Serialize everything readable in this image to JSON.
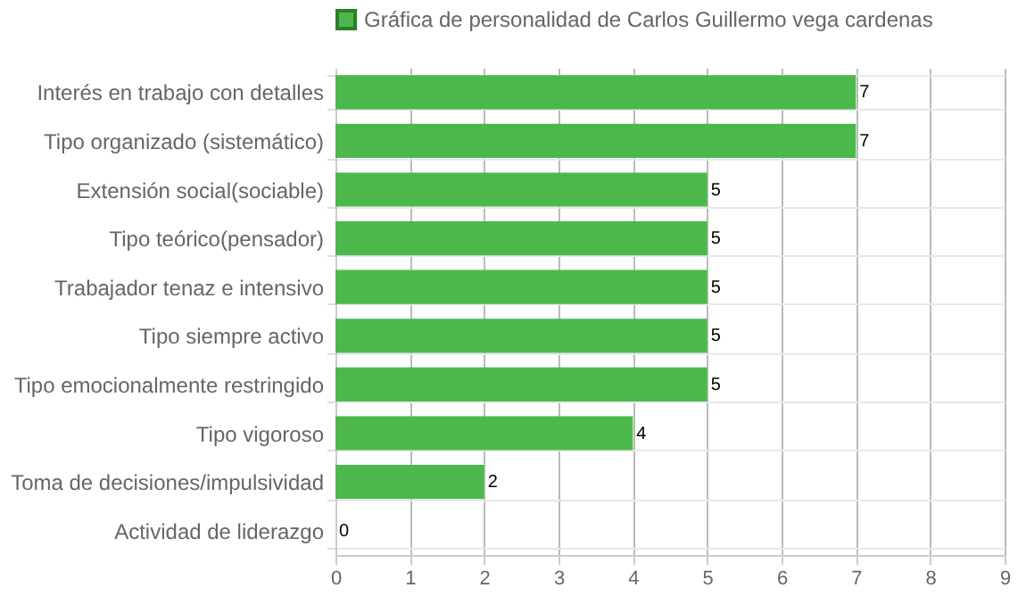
{
  "chart_data": {
    "type": "bar",
    "orientation": "horizontal",
    "categories": [
      "Interés en trabajo con detalles",
      "Tipo organizado (sistemático)",
      "Extensión social(sociable)",
      "Tipo teórico(pensador)",
      "Trabajador tenaz e intensivo",
      "Tipo siempre activo",
      "Tipo emocionalmente restringido",
      "Tipo vigoroso",
      "Toma de decisiones/impulsividad",
      "Actividad de liderazgo"
    ],
    "series": [
      {
        "name": "Gráfica de personalidad de Carlos Guillermo vega cardenas",
        "color": "#4cb84c",
        "values": [
          7,
          7,
          5,
          5,
          5,
          5,
          5,
          4,
          2,
          0
        ]
      }
    ],
    "xlim": [
      0,
      9
    ],
    "xticks": [
      0,
      1,
      2,
      3,
      4,
      5,
      6,
      7,
      8,
      9
    ],
    "grid": true,
    "legend": "top",
    "data_labels": true
  }
}
